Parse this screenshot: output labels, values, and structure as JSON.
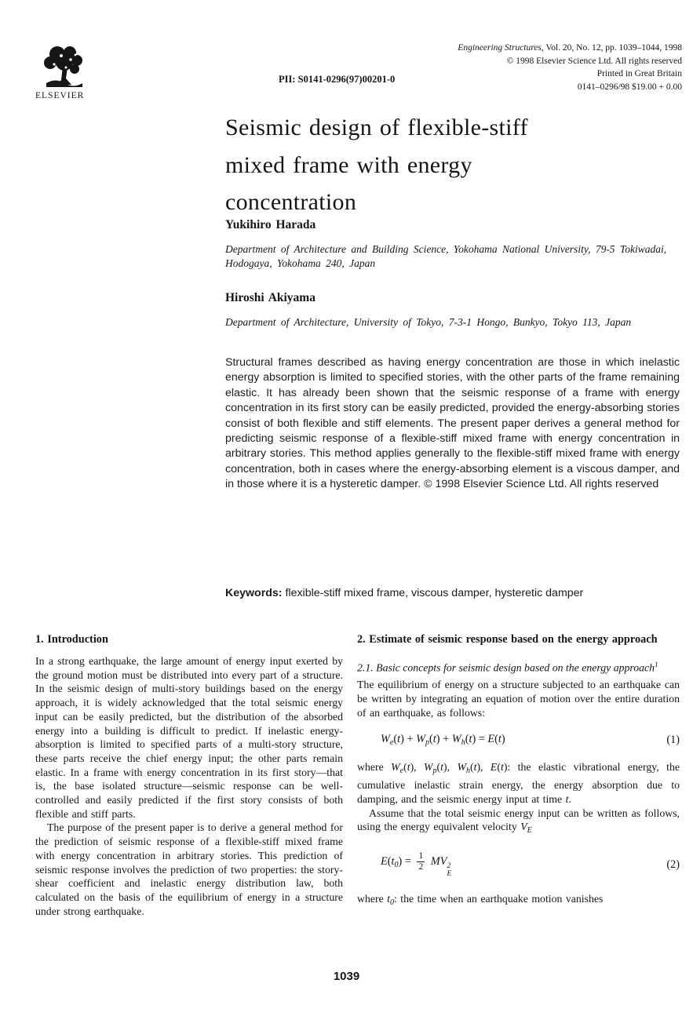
{
  "header": {
    "logo_text": "ELSEVIER",
    "journal_name": "Engineering Structures",
    "journal_rest": ", Vol. 20, No. 12, pp. 1039–1044, 1998",
    "copyright": "© 1998 Elsevier Science Ltd. All rights reserved",
    "printed": "Printed in Great Britain",
    "code_price": "0141–0296/98 $19.00 + 0.00",
    "pii": "PII: S0141-0296(97)00201-0"
  },
  "article": {
    "title_lines": [
      "Seismic design of flexible-stiff",
      "mixed frame with energy",
      "concentration"
    ],
    "authors": [
      {
        "name": "Yukihiro Harada",
        "affiliation": "Department of Architecture and Building Science, Yokohama National University, 79-5 Tokiwadai, Hodogaya, Yokohama 240, Japan"
      },
      {
        "name": "Hiroshi Akiyama",
        "affiliation": "Department of Architecture, University of Tokyo, 7-3-1 Hongo, Bunkyo, Tokyo 113, Japan"
      }
    ],
    "abstract": "Structural frames described as having energy concentration are those in which inelastic energy absorption is limited to specified stories, with the other parts of the frame remaining elastic. It has already been shown that the seismic response of a frame with energy concentration in its first story can be easily predicted, provided the energy-absorbing stories consist of both flexible and stiff elements. The present paper derives a general method for predicting seismic response of a flexible-stiff mixed frame with energy concentration in arbitrary stories. This method applies generally to the flexible-stiff mixed frame with energy concentration, both in cases where the energy-absorbing element is a viscous damper, and in those where it is a hysteretic damper. © 1998 Elsevier Science Ltd. All rights reserved",
    "keywords": {
      "label": "Keywords:",
      "text": " flexible-stiff mixed frame, viscous damper, hysteretic damper"
    }
  },
  "intro": {
    "heading": "1. Introduction",
    "para1": "In a strong earthquake, the large amount of energy input exerted by the ground motion must be distributed into every part of a structure. In the seismic design of multi-story buildings based on the energy approach, it is widely acknowledged that the total seismic energy input can be easily predicted, but the distribution of the absorbed energy into a building is difficult to predict. If inelastic energy-absorption is limited to specified parts of a multi-story structure, these parts receive the chief energy input; the other parts remain elastic. In a frame with energy concentration in its first story—that is, the base isolated structure—seismic response can be well-controlled and easily predicted if the first story consists of both flexible and stiff parts.",
    "para2": "The purpose of the present paper is to derive a general method for the prediction of seismic response of a flexible-stiff mixed frame with energy concentration in arbitrary stories. This prediction of seismic response involves the prediction of two properties: the story-shear coefficient and inelastic energy distribution law, both calculated on the basis of the equilibrium of energy in a structure under strong earthquake."
  },
  "section2": {
    "heading": "2. Estimate of seismic response based on the energy approach",
    "subheading": "2.1. Basic concepts for seismic design based on the energy approach",
    "subheading_sup": "1",
    "para1": "The equilibrium of energy on a structure subjected to an earthquake can be written by integrating an equation of motion over the entire duration of an earthquake, as follows:",
    "eq1": {
      "number": "(1)",
      "tokens": [
        {
          "k": "v",
          "v": "W"
        },
        {
          "k": "sub",
          "v": "e"
        },
        {
          "k": "r",
          "v": "("
        },
        {
          "k": "v",
          "v": "t"
        },
        {
          "k": "r",
          "v": ") + "
        },
        {
          "k": "v",
          "v": "W"
        },
        {
          "k": "sub",
          "v": "p"
        },
        {
          "k": "r",
          "v": "("
        },
        {
          "k": "v",
          "v": "t"
        },
        {
          "k": "r",
          "v": ") + "
        },
        {
          "k": "v",
          "v": "W"
        },
        {
          "k": "sub",
          "v": "h"
        },
        {
          "k": "r",
          "v": "("
        },
        {
          "k": "v",
          "v": "t"
        },
        {
          "k": "r",
          "v": ") = "
        },
        {
          "k": "v",
          "v": "E"
        },
        {
          "k": "r",
          "v": "("
        },
        {
          "k": "v",
          "v": "t"
        },
        {
          "k": "r",
          "v": ")"
        }
      ]
    },
    "where1_tokens": [
      {
        "k": "r",
        "v": "where "
      },
      {
        "k": "v",
        "v": "W"
      },
      {
        "k": "sub",
        "v": "e"
      },
      {
        "k": "r",
        "v": "("
      },
      {
        "k": "v",
        "v": "t"
      },
      {
        "k": "r",
        "v": "), "
      },
      {
        "k": "v",
        "v": "W"
      },
      {
        "k": "sub",
        "v": "p"
      },
      {
        "k": "r",
        "v": "("
      },
      {
        "k": "v",
        "v": "t"
      },
      {
        "k": "r",
        "v": "), "
      },
      {
        "k": "v",
        "v": "W"
      },
      {
        "k": "sub",
        "v": "h"
      },
      {
        "k": "r",
        "v": "("
      },
      {
        "k": "v",
        "v": "t"
      },
      {
        "k": "r",
        "v": "), "
      },
      {
        "k": "v",
        "v": "E"
      },
      {
        "k": "r",
        "v": "("
      },
      {
        "k": "v",
        "v": "t"
      },
      {
        "k": "r",
        "v": "): the elastic vibrational energy, the cumulative inelastic strain energy, the energy absorption due to damping, and the seismic energy input at time "
      },
      {
        "k": "v",
        "v": "t"
      },
      {
        "k": "r",
        "v": "."
      }
    ],
    "assume_tokens": [
      {
        "k": "r",
        "v": "Assume that the total seismic energy input can be written as follows, using the energy equivalent velocity "
      },
      {
        "k": "v",
        "v": "V"
      },
      {
        "k": "sub",
        "v": "E"
      }
    ],
    "eq2": {
      "number": "(2)",
      "tokens": [
        {
          "k": "v",
          "v": "E"
        },
        {
          "k": "r",
          "v": "("
        },
        {
          "k": "v",
          "v": "t"
        },
        {
          "k": "sub",
          "v": "0"
        },
        {
          "k": "r",
          "v": ") = "
        },
        {
          "k": "frac",
          "n": "1",
          "d": "2"
        },
        {
          "k": "r",
          "v": " "
        },
        {
          "k": "v",
          "v": "MV"
        },
        {
          "k": "supsub",
          "sup": "2",
          "sub": "E"
        }
      ]
    },
    "where2_tokens": [
      {
        "k": "r",
        "v": "where "
      },
      {
        "k": "v",
        "v": "t"
      },
      {
        "k": "sub",
        "v": "0"
      },
      {
        "k": "r",
        "v": ": the time when an earthquake motion vanishes"
      }
    ]
  },
  "page": {
    "number": "1039"
  }
}
